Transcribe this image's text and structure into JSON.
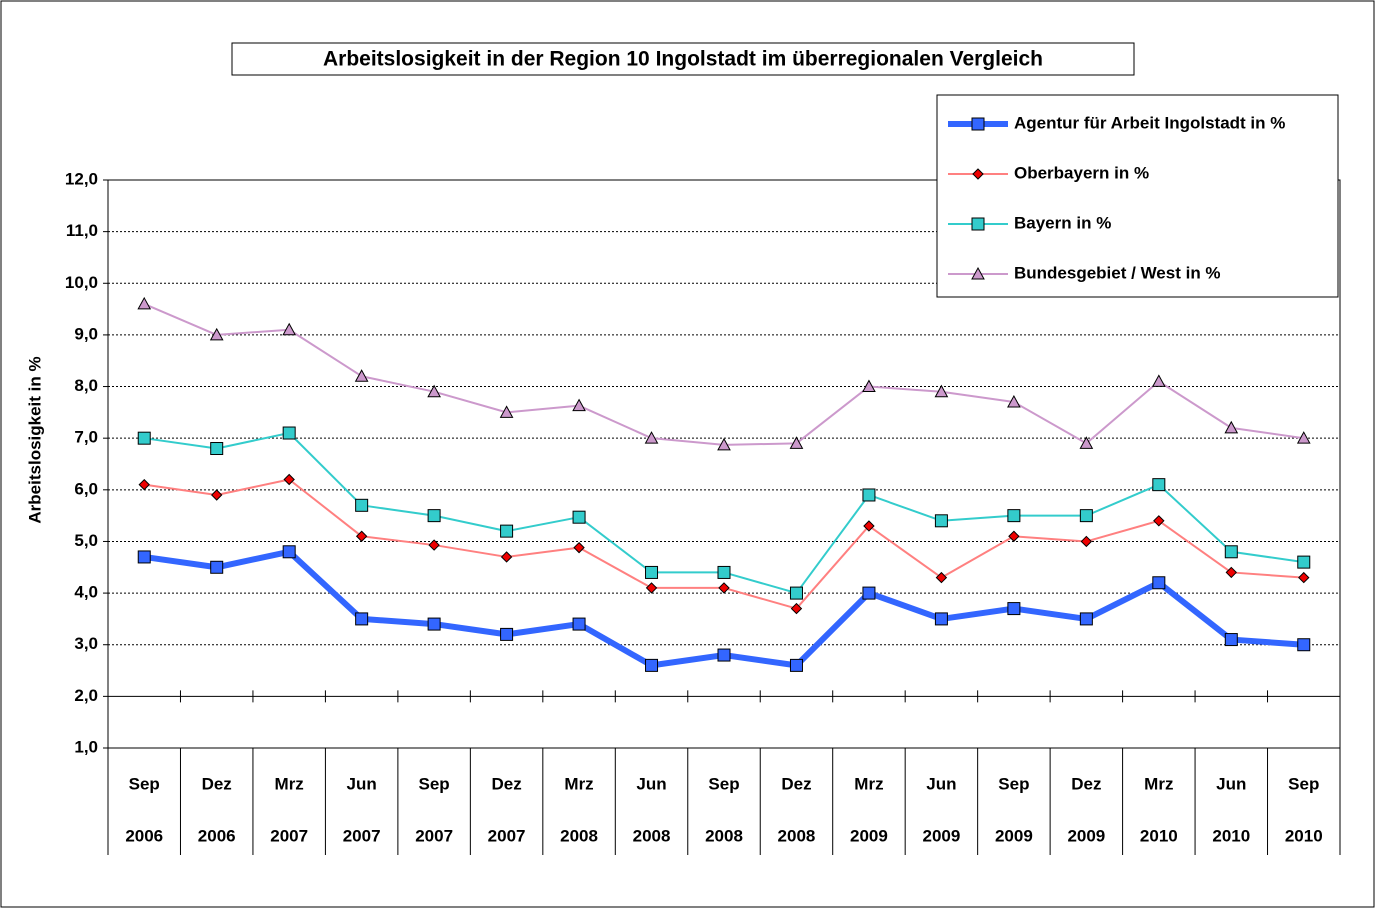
{
  "chart_data": {
    "type": "line",
    "title": "Arbeitslosigkeit in der Region 10 Ingolstadt im überregionalen Vergleich",
    "y_label": "Arbeitslosigkeit in %",
    "categories": [
      [
        "Sep",
        "2006"
      ],
      [
        "Dez",
        "2006"
      ],
      [
        "Mrz",
        "2007"
      ],
      [
        "Jun",
        "2007"
      ],
      [
        "Sep",
        "2007"
      ],
      [
        "Dez",
        "2007"
      ],
      [
        "Mrz",
        "2008"
      ],
      [
        "Jun",
        "2008"
      ],
      [
        "Sep",
        "2008"
      ],
      [
        "Dez",
        "2008"
      ],
      [
        "Mrz",
        "2009"
      ],
      [
        "Jun",
        "2009"
      ],
      [
        "Sep",
        "2009"
      ],
      [
        "Dez",
        "2009"
      ],
      [
        "Mrz",
        "2010"
      ],
      [
        "Jun",
        "2010"
      ],
      [
        "Sep",
        "2010"
      ]
    ],
    "series": [
      {
        "name": "Agentur für Arbeit Ingolstadt in %",
        "color": "#3366ff",
        "marker": "square",
        "line_width": 6,
        "values": [
          4.7,
          4.5,
          4.8,
          3.5,
          3.4,
          3.2,
          3.4,
          2.6,
          2.8,
          2.6,
          4.0,
          3.5,
          3.7,
          3.5,
          4.2,
          3.1,
          3.0
        ]
      },
      {
        "name": "Oberbayern in %",
        "color": "#ff8080",
        "marker_color": "#ee0000",
        "marker": "diamond",
        "line_width": 2,
        "values": [
          6.1,
          5.9,
          6.2,
          5.1,
          4.93,
          4.7,
          4.88,
          4.1,
          4.1,
          3.7,
          5.3,
          4.3,
          5.1,
          5.0,
          5.4,
          4.4,
          4.3
        ]
      },
      {
        "name": "Bayern in %",
        "color": "#33cccc",
        "marker": "square",
        "line_width": 2,
        "values": [
          7.0,
          6.8,
          7.1,
          5.7,
          5.5,
          5.2,
          5.47,
          4.4,
          4.4,
          4.0,
          5.9,
          5.4,
          5.5,
          5.5,
          6.1,
          4.8,
          4.6
        ]
      },
      {
        "name": "Bundesgebiet / West in %",
        "color": "#cc99cc",
        "marker": "triangle",
        "line_width": 2,
        "values": [
          9.6,
          9.0,
          9.1,
          8.2,
          7.9,
          7.5,
          7.63,
          7.0,
          6.87,
          6.9,
          8.0,
          7.9,
          7.7,
          6.9,
          8.1,
          7.2,
          7.0
        ]
      }
    ],
    "ylim": [
      1,
      12
    ],
    "yticks": [
      {
        "value": 1,
        "label": "1,0"
      },
      {
        "value": 2,
        "label": "2,0"
      },
      {
        "value": 3,
        "label": "3,0"
      },
      {
        "value": 4,
        "label": "4,0"
      },
      {
        "value": 5,
        "label": "5,0"
      },
      {
        "value": 6,
        "label": "6,0"
      },
      {
        "value": 7,
        "label": "7,0"
      },
      {
        "value": 8,
        "label": "8,0"
      },
      {
        "value": 9,
        "label": "9,0"
      },
      {
        "value": 10,
        "label": "10,0"
      },
      {
        "value": 11,
        "label": "11,0"
      },
      {
        "value": 12,
        "label": "12,0"
      }
    ],
    "grid": true,
    "legend": "top-right"
  }
}
